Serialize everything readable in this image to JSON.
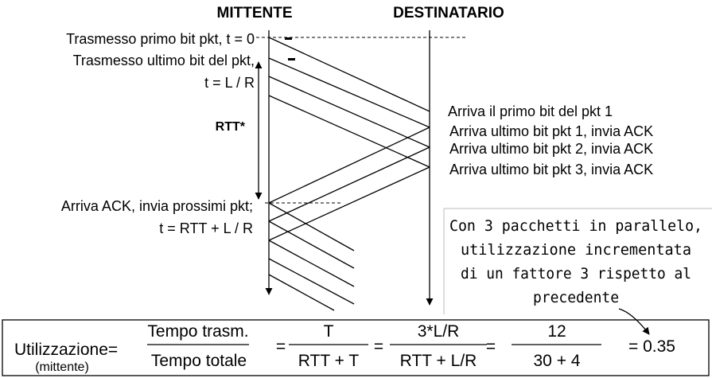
{
  "headers": {
    "sender": "MITTENTE",
    "receiver": "DESTINATARIO"
  },
  "sender_labels": {
    "first_bit": "Trasmesso primo bit pkt, t = 0",
    "last_bit_1": "Trasmesso ultimo bit del pkt,",
    "last_bit_2": "t = L / R",
    "rtt": "RTT*",
    "ack_1": "Arriva ACK, invia prossimi pkt;",
    "ack_2": "t = RTT + L / R"
  },
  "receiver_labels": {
    "first_bit_pkt1": "Arriva il primo bit del pkt 1",
    "last_bit_pkt1": "Arriva ultimo bit pkt 1, invia ACK",
    "last_bit_pkt2": "Arriva ultimo bit pkt 2, invia ACK",
    "last_bit_pkt3": "Arriva ultimo bit pkt 3, invia ACK"
  },
  "note": {
    "line1": "Con 3 pacchetti in parallelo,",
    "line2": "utilizzazione incrementata",
    "line3": "di un fattore 3 rispetto al",
    "line4": "precedente"
  },
  "formula": {
    "label": "Utilizzazione=",
    "sublabel": "(mittente)",
    "frac1_num": "Tempo trasm.",
    "frac1_den": "Tempo totale",
    "eq1": "=",
    "frac2_num": "T",
    "frac2_den": "RTT + T",
    "eq2": "=",
    "frac3_num": "3*L/R",
    "frac3_den": "RTT + L/R",
    "eq3": "=",
    "frac4_num": "12",
    "frac4_den": "30 + 4",
    "result": "= 0.35"
  }
}
